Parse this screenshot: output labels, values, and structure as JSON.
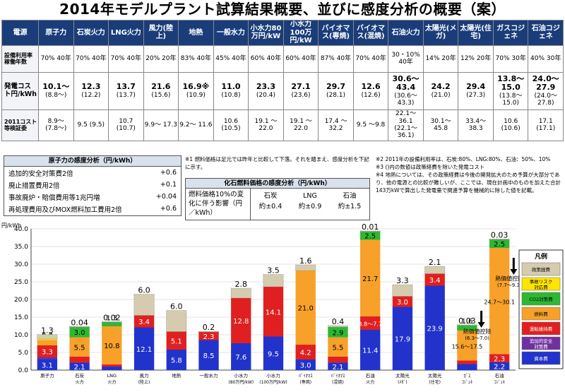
{
  "title": "2014年モデルプラント試算結果概要、並びに感度分析の概要（案）",
  "table": {
    "header_label": "電源",
    "columns": [
      "原子力",
      "石炭火力",
      "LNG火力",
      "風力(陸上)",
      "地熱",
      "一般水力",
      "小水力80万円/kW",
      "小水力100万円/kW",
      "バイオマス(専焼)",
      "バイオマス(混焼)",
      "石油火力",
      "太陽光(メガ)",
      "太陽光(住宅)",
      "ガスコジェネ",
      "石油コジェネ"
    ],
    "row1_label": "設備利用率稼働年数",
    "row1": [
      "70% 40年",
      "70% 40年",
      "70% 40年",
      "20% 20年",
      "83% 40年",
      "45% 40年",
      "60% 40年",
      "60% 40年",
      "87% 40年",
      "70% 40年",
      "30・10% 40年",
      "14% 20年",
      "12% 20年",
      "70% 30年",
      "40% 30年"
    ],
    "row2_label": "発電コスト円/kWh",
    "row2_main": [
      "10.1〜",
      "12.3",
      "13.7",
      "21.6",
      "16.9※",
      "11.0",
      "23.3",
      "27.1",
      "29.7",
      "12.6",
      "30.6〜43.4",
      "24.2",
      "29.4",
      "13.8〜15.0",
      "24.0〜27.9"
    ],
    "row2_sub": [
      "(8.8〜)",
      "(12.2)",
      "(13.7)",
      "(15.6)",
      "(10.9)",
      "(10.8)",
      "(20.4)",
      "(23.6)",
      "(28.1)",
      "(12.6)",
      "(30.6〜43.3)",
      "(21.0)",
      "(27.3)",
      "(13.8〜15.0)",
      "(24.0〜27.8)"
    ],
    "row3_label": "2011コスト等検証委",
    "row3": [
      "8.9〜 (7.8〜)",
      "9.5 (9.5)",
      "10.7 (10.7)",
      "9.9〜 17.3",
      "9.2〜 11.6",
      "10.6 (10.5)",
      "19.1 〜22.0",
      "19.1 〜22.0",
      "17.4 〜32.2",
      "9.5 〜9.8",
      "22.1〜36.1 (22.1〜36.1)",
      "30.1〜 45.8",
      "33.4〜 38.3",
      "10.6 (10.6)",
      "17.1 (17.1)"
    ]
  },
  "sensitivity": {
    "header": "原子力の感度分析（円/kWh）",
    "rows": [
      {
        "label": "追加的安全対策費2倍",
        "value": "+0.6"
      },
      {
        "label": "廃止措置費用2倍",
        "value": "+0.1"
      },
      {
        "label": "事故廃炉・賠償費用等1兆円増",
        "value": "+0.04"
      },
      {
        "label": "再処理費用及びMOX燃料加工費用2倍",
        "value": "+0.6"
      }
    ]
  },
  "note1": "※1 燃料価格は足元では昨年と比較して下落。それを踏まえ、感度分析を下記に示す。",
  "fuel": {
    "header": "化石燃料価格の感度分析（円/kWh）",
    "label": "燃料価格10%の変化に伴う影響（円／kWh）",
    "cols": [
      {
        "name": "石炭",
        "value": "約±0.4"
      },
      {
        "name": "LNG",
        "value": "約±0.9"
      },
      {
        "name": "石油",
        "value": "約±1.5"
      }
    ]
  },
  "notes2": [
    "※2 2011年の設備利用率は、石炭:80%、LNG:80%、石油：50%、10%",
    "※3 ()内の数値は政策経費を除いた発電コスト",
    "※4 地熱については、その政策経費は今後の開発拡大のため予算が大部分であり、他の電源との比較が難しいが、ここでは、現在計画中のものを加えた合計143万kWで算出した発電量で関連予算を機械的に除した値を記載。"
  ],
  "chart_data": {
    "type": "bar",
    "stacked": true,
    "ylabel": "円/kWh",
    "ylim": [
      0,
      40
    ],
    "yticks": [
      0,
      5,
      10,
      15,
      20,
      25,
      30,
      35,
      40
    ],
    "categories": [
      [
        "原子力",
        ""
      ],
      [
        "石炭",
        "火力"
      ],
      [
        "LNG",
        "火力"
      ],
      [
        "風力",
        "(陸上)"
      ],
      [
        "地熱",
        ""
      ],
      [
        "一般水力",
        ""
      ],
      [
        "小水力",
        "(80万円/kW)"
      ],
      [
        "小水力",
        "(100万円/kW)"
      ],
      [
        "ﾊﾞｲｵﾏｽ",
        "(専焼)"
      ],
      [
        "ﾊﾞｲｵﾏｽ",
        "(混焼)"
      ],
      [
        "石油",
        "火力"
      ],
      [
        "太陽光",
        "(ﾒｶﾞ)"
      ],
      [
        "太陽光",
        "(住宅)"
      ],
      [
        "ｶﾞｽ",
        "ｺｼﾞｪﾈ"
      ],
      [
        "石油",
        "ｺｼﾞｪﾈ"
      ]
    ],
    "series": [
      {
        "name": "資本費",
        "color": "#2233cc",
        "values": [
          3.1,
          2.1,
          1.0,
          12.1,
          5.8,
          8.5,
          7.6,
          9.5,
          3.0,
          2.1,
          11.4,
          17.9,
          23.9,
          1.7,
          2.2
        ]
      },
      {
        "name": "追加的安全対策費",
        "color": "#7030a0",
        "values": [
          0.6,
          0,
          0,
          0,
          0,
          0,
          0,
          0,
          0,
          0,
          0,
          0,
          0,
          0,
          0
        ]
      },
      {
        "name": "運転維持費",
        "color": "#e02020",
        "values": [
          3.3,
          1.7,
          0.6,
          3.4,
          5.1,
          2.3,
          12.8,
          14.1,
          4.2,
          1.7,
          3.8,
          3.0,
          3.4,
          1.0,
          2.3
        ]
      },
      {
        "name": "燃料費",
        "color": "#f7a12a",
        "values": [
          1.5,
          5.5,
          10.8,
          0,
          0,
          0,
          0,
          0,
          21.0,
          5.5,
          21.7,
          0,
          0,
          8.5,
          30.1
        ]
      },
      {
        "name": "CO2対策費",
        "color": "#2db833",
        "values": [
          0,
          3.0,
          1.3,
          0,
          0,
          0,
          0,
          0,
          0,
          2.9,
          2.5,
          0,
          0,
          1.6,
          2.5
        ]
      },
      {
        "name": "事故リスク対応費",
        "color": "#ffe600",
        "values": [
          0.3,
          0,
          0,
          0,
          0,
          0,
          0,
          0,
          0,
          0,
          0,
          0,
          0,
          0,
          0
        ]
      },
      {
        "name": "政策経費",
        "color": "#d5ccb0",
        "values": [
          1.3,
          0.04,
          0.02,
          6.0,
          6.0,
          0.2,
          2.8,
          3.5,
          1.6,
          0.4,
          0.01,
          3.3,
          2.1,
          0.03,
          0.03
        ]
      }
    ],
    "segment_labels": [
      [
        "3.1",
        "0.6",
        "3.3",
        "1.5",
        "",
        "0.3",
        "1.3"
      ],
      [
        "2.1",
        "",
        "1.7",
        "5.5",
        "3.0",
        "",
        "0.04"
      ],
      [
        "1.0",
        "",
        "0.6",
        "10.8",
        "1.3",
        "",
        "0.02"
      ],
      [
        "12.1",
        "",
        "3.4",
        "",
        "",
        "",
        "6.0"
      ],
      [
        "5.8",
        "",
        "5.1",
        "",
        "",
        "",
        "6.0"
      ],
      [
        "8.5",
        "",
        "2.3",
        "",
        "",
        "",
        "0.2"
      ],
      [
        "7.6",
        "",
        "12.8",
        "",
        "",
        "",
        "2.8"
      ],
      [
        "9.5",
        "",
        "14.1",
        "",
        "",
        "",
        "3.5"
      ],
      [
        "3.0",
        "",
        "4.2",
        "21.0",
        "",
        "",
        "1.6"
      ],
      [
        "2.1",
        "",
        "1.7",
        "5.5",
        "2.9",
        "",
        "0.4"
      ],
      [
        "11.4",
        "",
        "3.8〜7.7",
        "21.7",
        "2.5",
        "",
        "0.01"
      ],
      [
        "17.9",
        "",
        "3.0",
        "",
        "",
        "",
        "3.3"
      ],
      [
        "23.9",
        "",
        "3.4",
        "",
        "",
        "",
        "2.1"
      ],
      [
        "1.7",
        "",
        "1.0",
        "15.6〜17.5",
        "1.6",
        "",
        "0.03"
      ],
      [
        "2.2",
        "",
        "2.3",
        "24.7〜30.1",
        "2.5",
        "",
        "0.03"
      ]
    ],
    "annotations": [
      {
        "text": "熱価値控除 (6.3〜7.0)",
        "bar": 13
      },
      {
        "text": "熱価値控除 (7.7〜9.3)",
        "bar": 14
      }
    ],
    "legend_title": "凡例",
    "legend": [
      "政策経費",
      "事故リスク対応費",
      "CO2対策費",
      "燃料費",
      "運転維持費",
      "追加的安全対策費",
      "資本費"
    ]
  }
}
